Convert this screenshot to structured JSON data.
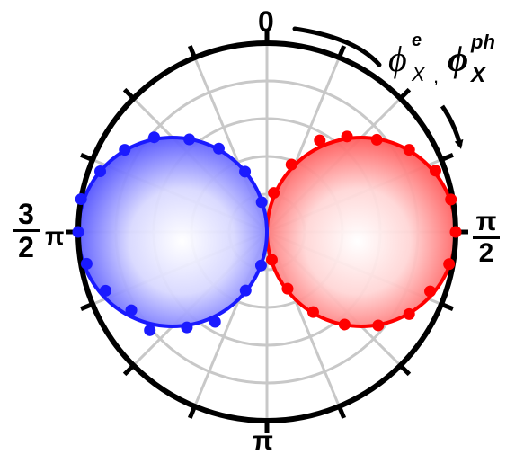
{
  "chart_data": {
    "type": "polar",
    "angle_labels": {
      "top": "0",
      "right_num": "π",
      "right_den": "2",
      "bottom": "π",
      "left_num": "3",
      "left_den": "2",
      "left_pi": "π"
    },
    "axis_label": {
      "phi1_base": "ϕ",
      "phi1_sup": "e",
      "phi1_sub": "X",
      "separator": ",",
      "phi2_base": "ϕ",
      "phi2_sup": "ph",
      "phi2_sub": "X"
    },
    "grid": true,
    "radial_rings": [
      0.2,
      0.4,
      0.6,
      0.8,
      1.0
    ],
    "series": [
      {
        "color": "#ff0000",
        "fit": "sin",
        "points": [
          {
            "theta_deg": 10,
            "r": 0.21
          },
          {
            "theta_deg": 20,
            "r": 0.38
          },
          {
            "theta_deg": 30,
            "r": 0.56
          },
          {
            "theta_deg": 40,
            "r": 0.66
          },
          {
            "theta_deg": 50,
            "r": 0.76
          },
          {
            "theta_deg": 60,
            "r": 0.87
          },
          {
            "theta_deg": 70,
            "r": 0.95
          },
          {
            "theta_deg": 80,
            "r": 0.99
          },
          {
            "theta_deg": 90,
            "r": 1.0
          },
          {
            "theta_deg": 100,
            "r": 0.98
          },
          {
            "theta_deg": 110,
            "r": 0.92
          },
          {
            "theta_deg": 120,
            "r": 0.87
          },
          {
            "theta_deg": 130,
            "r": 0.77
          },
          {
            "theta_deg": 140,
            "r": 0.64
          },
          {
            "theta_deg": 150,
            "r": 0.49
          },
          {
            "theta_deg": 160,
            "r": 0.32
          },
          {
            "theta_deg": 170,
            "r": 0.15
          }
        ]
      },
      {
        "color": "#1a1aff",
        "fit": "sin",
        "points": [
          {
            "theta_deg": 190,
            "r": 0.18
          },
          {
            "theta_deg": 200,
            "r": 0.33
          },
          {
            "theta_deg": 210,
            "r": 0.55
          },
          {
            "theta_deg": 220,
            "r": 0.66
          },
          {
            "theta_deg": 230,
            "r": 0.81
          },
          {
            "theta_deg": 240,
            "r": 0.83
          },
          {
            "theta_deg": 250,
            "r": 0.91
          },
          {
            "theta_deg": 260,
            "r": 0.97
          },
          {
            "theta_deg": 270,
            "r": 1.0
          },
          {
            "theta_deg": 280,
            "r": 1.0
          },
          {
            "theta_deg": 290,
            "r": 0.94
          },
          {
            "theta_deg": 300,
            "r": 0.87
          },
          {
            "theta_deg": 310,
            "r": 0.78
          },
          {
            "theta_deg": 320,
            "r": 0.64
          },
          {
            "theta_deg": 330,
            "r": 0.51
          },
          {
            "theta_deg": 340,
            "r": 0.34
          },
          {
            "theta_deg": 350,
            "r": 0.16
          }
        ]
      }
    ]
  }
}
